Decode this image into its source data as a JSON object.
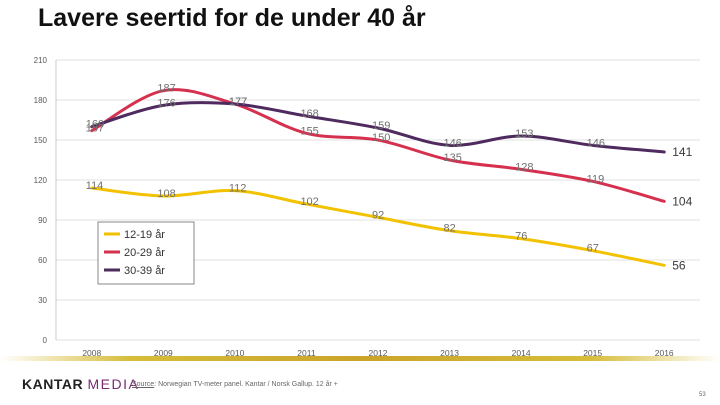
{
  "page": {
    "title": "Lavere seertid for de under 40 år",
    "brand_main": "KANTAR",
    "brand_media": "MEDIA",
    "source_label": "Source",
    "source_text": ": Norwegian TV-meter panel. Kantar / Norsk Gallup. 12 år +",
    "page_number": "53"
  },
  "colors": {
    "gold": "#caa428",
    "grid": "#d9d9d9",
    "axis_text": "#595959"
  },
  "chart_data": {
    "type": "line",
    "title": "",
    "xlabel": "",
    "ylabel": "",
    "categories": [
      "2008",
      "2009",
      "2010",
      "2011",
      "2012",
      "2013",
      "2014",
      "2015",
      "2016"
    ],
    "ylim": [
      0,
      210
    ],
    "yticks": [
      0,
      30,
      60,
      90,
      120,
      150,
      180,
      210
    ],
    "grid": true,
    "legend_position": "left-inside",
    "series": [
      {
        "name": "12-19 år",
        "color": "#f2c200",
        "values": [
          114,
          108,
          112,
          102,
          92,
          82,
          76,
          67,
          56
        ]
      },
      {
        "name": "20-29 år",
        "color": "#d6304f",
        "values": [
          157,
          187,
          177,
          155,
          150,
          135,
          128,
          119,
          104
        ]
      },
      {
        "name": "30-39 år",
        "color": "#4e2a5e",
        "values": [
          160,
          176,
          177,
          168,
          159,
          146,
          153,
          146,
          141
        ]
      }
    ]
  }
}
